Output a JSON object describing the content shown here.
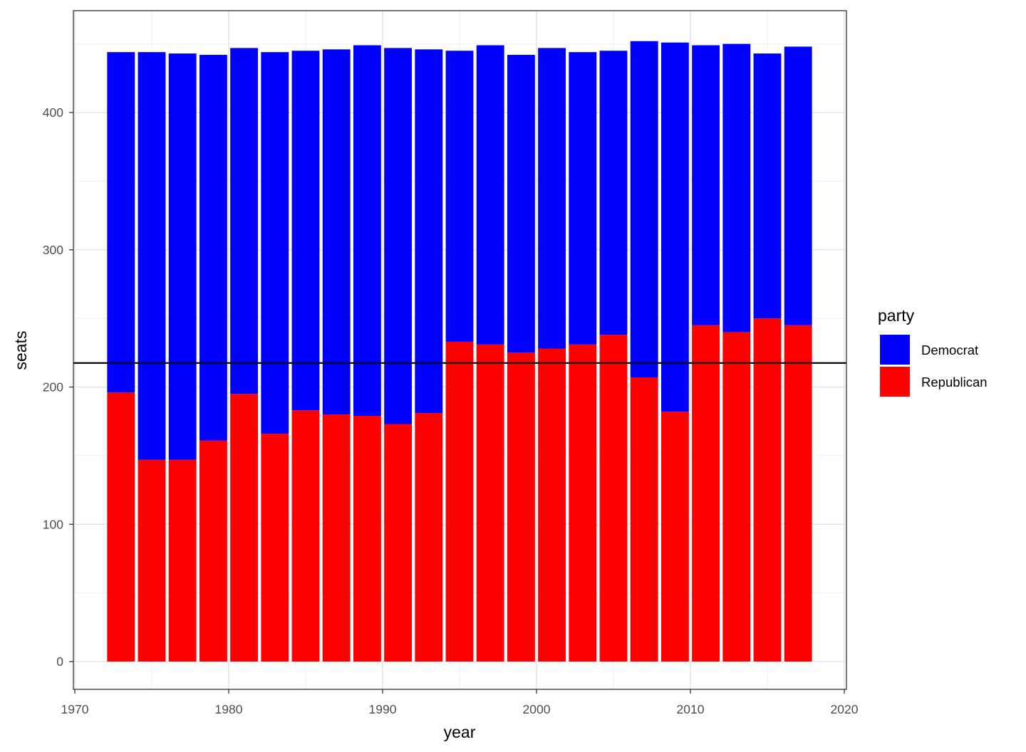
{
  "chart_data": {
    "type": "bar",
    "stacked": true,
    "title": "",
    "xlabel": "year",
    "ylabel": "seats",
    "xlim": [
      1970,
      2020
    ],
    "ylim": [
      -20,
      735
    ],
    "x_ticks": [
      1970,
      1980,
      1990,
      2000,
      2010,
      2020
    ],
    "y_ticks": [
      0,
      100,
      200,
      300,
      400
    ],
    "grid": true,
    "legend": {
      "title": "party",
      "position": "right",
      "entries": [
        "Democrat",
        "Republican"
      ]
    },
    "categories": [
      1973,
      1975,
      1977,
      1979,
      1981,
      1983,
      1985,
      1987,
      1989,
      1991,
      1993,
      1995,
      1997,
      1999,
      2001,
      2003,
      2005,
      2007,
      2009,
      2011,
      2013,
      2015,
      2017
    ],
    "series": [
      {
        "name": "Republican",
        "color": "#ff0000",
        "values": [
          196,
          147,
          147,
          161,
          195,
          166,
          183,
          180,
          179,
          173,
          181,
          233,
          231,
          225,
          228,
          231,
          238,
          207,
          182,
          245,
          240,
          250,
          245
        ]
      },
      {
        "name": "Democrat",
        "color": "#0000ff",
        "values": [
          248,
          297,
          296,
          281,
          252,
          278,
          262,
          266,
          270,
          274,
          265,
          212,
          218,
          217,
          219,
          213,
          207,
          245,
          269,
          204,
          210,
          193,
          203
        ]
      }
    ],
    "reference_line": {
      "y": 217.5,
      "color": "#000000"
    }
  }
}
